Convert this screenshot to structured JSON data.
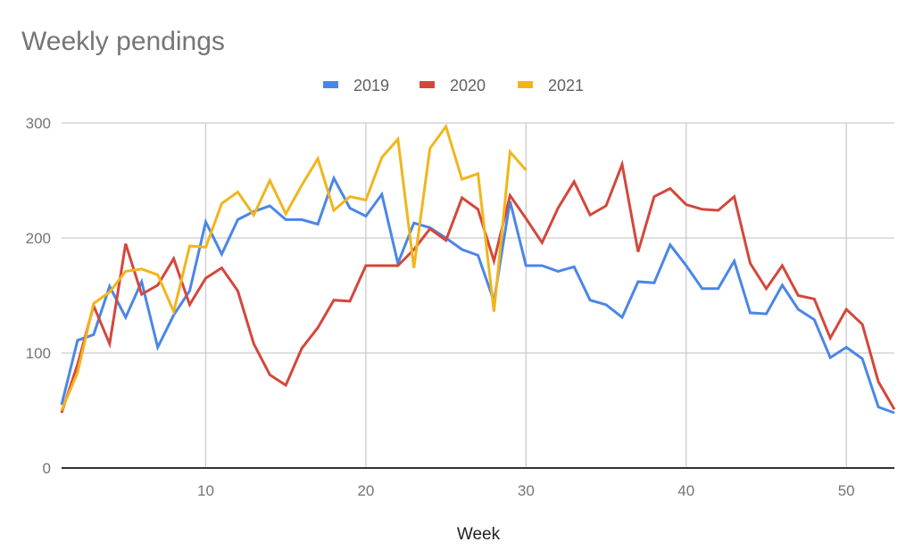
{
  "chart_data": {
    "type": "line",
    "title": "Weekly pendings",
    "xlabel": "Week",
    "ylabel": "",
    "xlim": [
      1,
      53
    ],
    "ylim": [
      0,
      300
    ],
    "xticks": [
      10,
      20,
      30,
      40,
      50
    ],
    "yticks": [
      0,
      100,
      200,
      300
    ],
    "grid": true,
    "legend_position": "top",
    "series": [
      {
        "name": "2019",
        "color": "#4a86e8",
        "x": [
          1,
          2,
          3,
          4,
          5,
          6,
          7,
          8,
          9,
          10,
          11,
          12,
          13,
          14,
          15,
          16,
          17,
          18,
          19,
          20,
          21,
          22,
          23,
          24,
          25,
          26,
          27,
          28,
          29,
          30,
          31,
          32,
          33,
          34,
          35,
          36,
          37,
          38,
          39,
          40,
          41,
          42,
          43,
          44,
          45,
          46,
          47,
          48,
          49,
          50,
          51,
          52,
          53
        ],
        "values": [
          55,
          111,
          116,
          158,
          131,
          162,
          105,
          133,
          154,
          214,
          186,
          216,
          223,
          228,
          216,
          216,
          212,
          252,
          226,
          219,
          238,
          178,
          213,
          209,
          200,
          190,
          185,
          145,
          232,
          176,
          176,
          171,
          175,
          146,
          142,
          131,
          162,
          161,
          194,
          176,
          156,
          156,
          180,
          135,
          134,
          159,
          138,
          129,
          96,
          105,
          95,
          53,
          48
        ]
      },
      {
        "name": "2020",
        "color": "#d4473b",
        "x": [
          1,
          2,
          3,
          4,
          5,
          6,
          7,
          8,
          9,
          10,
          11,
          12,
          13,
          14,
          15,
          16,
          17,
          18,
          19,
          20,
          21,
          22,
          23,
          24,
          25,
          26,
          27,
          28,
          29,
          30,
          31,
          32,
          33,
          34,
          35,
          36,
          37,
          38,
          39,
          40,
          41,
          42,
          43,
          44,
          45,
          46,
          47,
          48,
          49,
          50,
          51,
          52,
          53
        ],
        "values": [
          48,
          90,
          141,
          108,
          195,
          151,
          159,
          182,
          142,
          165,
          174,
          154,
          108,
          81,
          72,
          104,
          122,
          146,
          145,
          176,
          176,
          176,
          190,
          208,
          198,
          235,
          225,
          180,
          237,
          217,
          196,
          226,
          249,
          220,
          228,
          264,
          188,
          236,
          243,
          229,
          225,
          224,
          236,
          178,
          156,
          176,
          150,
          147,
          113,
          138,
          125,
          75,
          51
        ]
      },
      {
        "name": "2021",
        "color": "#f1b51c",
        "x": [
          1,
          2,
          3,
          4,
          5,
          6,
          7,
          8,
          9,
          10,
          11,
          12,
          13,
          14,
          15,
          16,
          17,
          18,
          19,
          20,
          21,
          22,
          23,
          24,
          25,
          26,
          27,
          28,
          29,
          30
        ],
        "values": [
          50,
          83,
          143,
          153,
          171,
          173,
          168,
          136,
          193,
          192,
          230,
          240,
          220,
          250,
          221,
          246,
          269,
          224,
          236,
          233,
          270,
          286,
          174,
          278,
          297,
          251,
          256,
          136,
          275,
          259
        ]
      }
    ]
  }
}
